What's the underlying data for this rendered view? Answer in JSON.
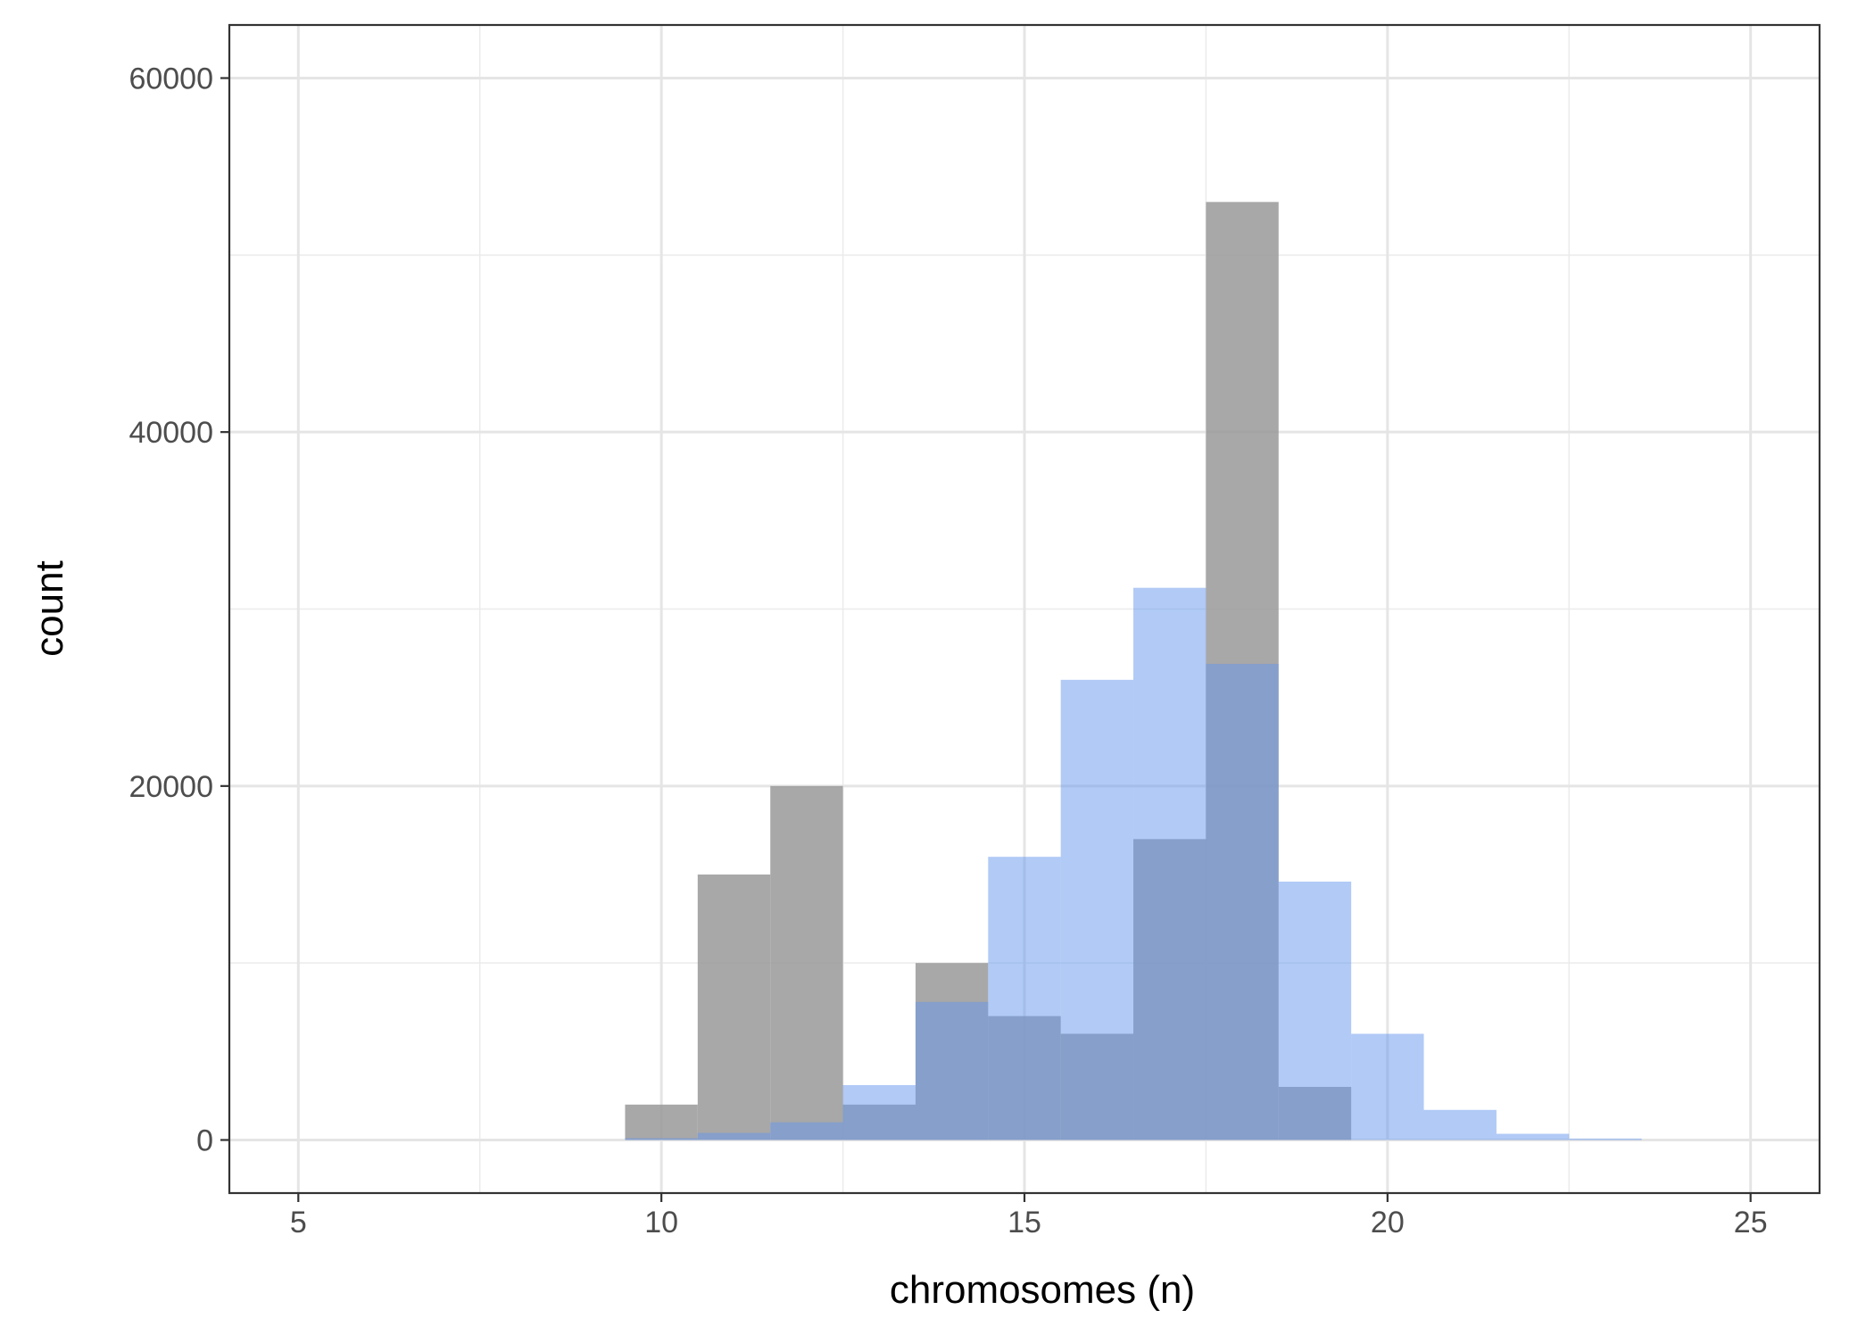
{
  "chart_data": {
    "type": "bar",
    "subtype": "overlapping-histogram",
    "title": "",
    "xlabel": "chromosomes (n)",
    "ylabel": "count",
    "xlim": [
      4.05,
      25.95
    ],
    "ylim": [
      -3000,
      63000
    ],
    "x_ticks": [
      5,
      10,
      15,
      20,
      25
    ],
    "y_ticks": [
      0,
      20000,
      40000,
      60000
    ],
    "bin_width": 1,
    "grid": true,
    "legend": "none",
    "series": [
      {
        "color": "#999999",
        "opacity": 0.85,
        "bins": [
          {
            "x": 10,
            "count": 2000
          },
          {
            "x": 11,
            "count": 15000
          },
          {
            "x": 12,
            "count": 20000
          },
          {
            "x": 13,
            "count": 2000
          },
          {
            "x": 14,
            "count": 10000
          },
          {
            "x": 15,
            "count": 7000
          },
          {
            "x": 16,
            "count": 6000
          },
          {
            "x": 17,
            "count": 17000
          },
          {
            "x": 18,
            "count": 53000
          },
          {
            "x": 19,
            "count": 3000
          }
        ]
      },
      {
        "color": "#6495ED",
        "opacity": 0.5,
        "bins": [
          {
            "x": 10,
            "count": 100
          },
          {
            "x": 11,
            "count": 400
          },
          {
            "x": 12,
            "count": 1000
          },
          {
            "x": 13,
            "count": 3100
          },
          {
            "x": 14,
            "count": 7800
          },
          {
            "x": 15,
            "count": 16000
          },
          {
            "x": 16,
            "count": 26000
          },
          {
            "x": 17,
            "count": 31200
          },
          {
            "x": 18,
            "count": 26900
          },
          {
            "x": 19,
            "count": 14600
          },
          {
            "x": 20,
            "count": 6000
          },
          {
            "x": 21,
            "count": 1700
          },
          {
            "x": 22,
            "count": 350
          },
          {
            "x": 23,
            "count": 80
          }
        ]
      }
    ]
  }
}
